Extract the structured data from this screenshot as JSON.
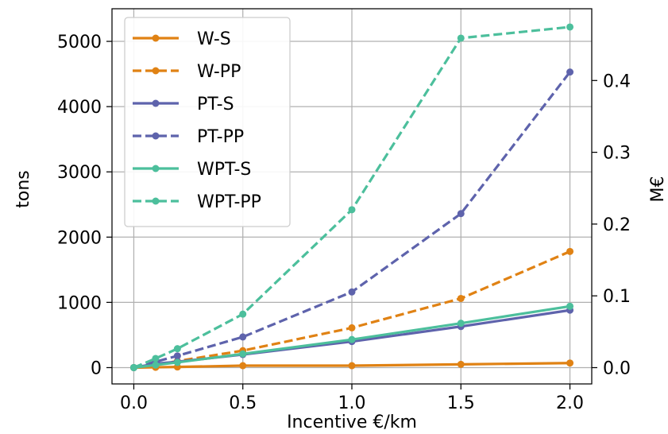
{
  "chart_data": {
    "type": "line",
    "xlabel": "Incentive €/km",
    "ylabel": "tons",
    "y2label": "M€",
    "x": [
      0.0,
      0.1,
      0.2,
      0.5,
      1.0,
      1.5,
      2.0
    ],
    "xticks": [
      "0.0",
      "0.5",
      "1.0",
      "1.5",
      "2.0"
    ],
    "yticks": [
      "0",
      "1000",
      "2000",
      "3000",
      "4000",
      "5000"
    ],
    "y2ticks": [
      "0.0",
      "0.1",
      "0.2",
      "0.3",
      "0.4"
    ],
    "xlim": [
      -0.1,
      2.1
    ],
    "ylim": [
      -250,
      5500
    ],
    "y2lim": [
      -0.0227,
      0.5
    ],
    "grid": true,
    "legend_position": "upper-left",
    "series": [
      {
        "name": "W-S",
        "color": "#e08214",
        "style": "solid",
        "values": [
          0,
          5,
          10,
          30,
          30,
          50,
          70
        ]
      },
      {
        "name": "W-PP",
        "color": "#e08214",
        "style": "dashed",
        "values": [
          0,
          40,
          100,
          260,
          610,
          1060,
          1780
        ]
      },
      {
        "name": "PT-S",
        "color": "#5e63ac",
        "style": "solid",
        "values": [
          0,
          60,
          90,
          200,
          400,
          630,
          880
        ]
      },
      {
        "name": "PT-PP",
        "color": "#5e63ac",
        "style": "dashed",
        "values": [
          0,
          90,
          180,
          470,
          1160,
          2360,
          4530
        ]
      },
      {
        "name": "WPT-S",
        "color": "#4cbf9c",
        "style": "solid",
        "values": [
          0,
          40,
          80,
          210,
          430,
          680,
          940
        ]
      },
      {
        "name": "WPT-PP",
        "color": "#4cbf9c",
        "style": "dashed",
        "values": [
          0,
          140,
          290,
          820,
          2420,
          5050,
          5220
        ]
      }
    ]
  }
}
